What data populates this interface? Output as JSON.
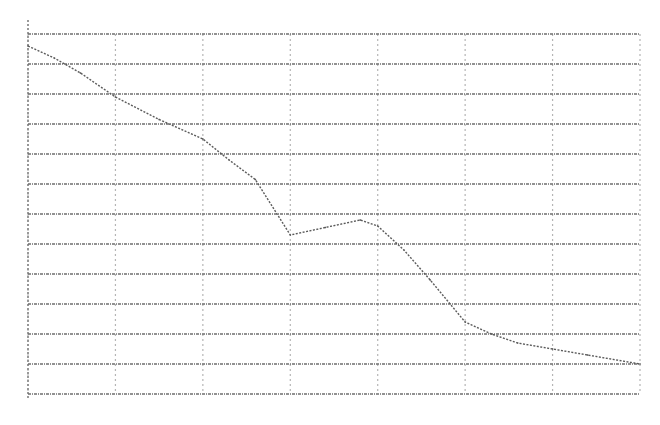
{
  "chart_data": {
    "type": "line",
    "title": "",
    "xlabel": "",
    "ylabel": "",
    "grid": true,
    "legend": "none",
    "style": "degraded noisy scan; tick labels largely illegible",
    "colors": {
      "grid": "#6f6f6f",
      "line": "#5a5a5a",
      "vertical_grid": "#b5b5b5",
      "tick_label": "#4a4a4a",
      "background": "#ffffff"
    },
    "x_tick_count": 8,
    "y_tick_count": 13,
    "x_tick_labels": [
      "",
      "",
      "",
      "",
      "",
      "",
      "",
      ""
    ],
    "y_tick_labels": [
      "",
      "",
      "",
      "",
      "",
      "",
      "",
      "",
      "",
      "",
      "",
      "",
      ""
    ],
    "xlim": [
      0,
      7
    ],
    "ylim": [
      0,
      12
    ],
    "series": [
      {
        "values": [
          {
            "x": 0.0,
            "y": 11.6
          },
          {
            "x": 0.3,
            "y": 11.2
          },
          {
            "x": 0.6,
            "y": 10.7
          },
          {
            "x": 1.0,
            "y": 9.9
          },
          {
            "x": 1.5,
            "y": 9.15
          },
          {
            "x": 2.0,
            "y": 8.5
          },
          {
            "x": 2.3,
            "y": 7.8
          },
          {
            "x": 2.6,
            "y": 7.15
          },
          {
            "x": 3.0,
            "y": 5.3
          },
          {
            "x": 3.4,
            "y": 5.55
          },
          {
            "x": 3.8,
            "y": 5.8
          },
          {
            "x": 4.0,
            "y": 5.6
          },
          {
            "x": 4.3,
            "y": 4.8
          },
          {
            "x": 4.6,
            "y": 3.8
          },
          {
            "x": 5.0,
            "y": 2.4
          },
          {
            "x": 5.3,
            "y": 2.0
          },
          {
            "x": 5.6,
            "y": 1.7
          },
          {
            "x": 6.0,
            "y": 1.5
          },
          {
            "x": 6.4,
            "y": 1.3
          },
          {
            "x": 7.0,
            "y": 1.0
          }
        ]
      }
    ]
  }
}
